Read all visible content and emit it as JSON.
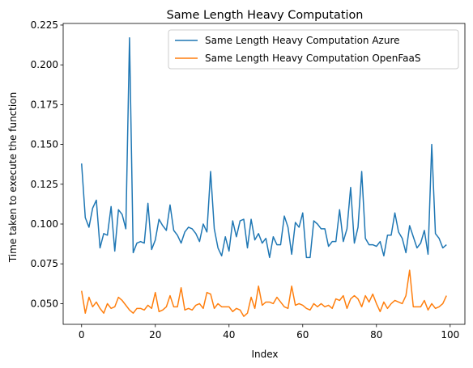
{
  "chart_data": {
    "type": "line",
    "title": "Same Length Heavy Computation",
    "xlabel": "Index",
    "ylabel": "Time taken to execute the function",
    "xlim": [
      -5,
      104
    ],
    "ylim": [
      0.037,
      0.226
    ],
    "xticks": [
      0,
      20,
      40,
      60,
      80,
      100
    ],
    "yticks": [
      0.05,
      0.075,
      0.1,
      0.125,
      0.15,
      0.175,
      0.2,
      0.225
    ],
    "ytick_labels": [
      "0.050",
      "0.075",
      "0.100",
      "0.125",
      "0.150",
      "0.175",
      "0.200",
      "0.225"
    ],
    "legend_position": "top-right",
    "grid": false,
    "series": [
      {
        "name": "Same Length Heavy Computation Azure",
        "color": "#1f77b4",
        "values": [
          0.138,
          0.104,
          0.098,
          0.11,
          0.115,
          0.085,
          0.094,
          0.093,
          0.111,
          0.083,
          0.109,
          0.106,
          0.097,
          0.217,
          0.082,
          0.088,
          0.089,
          0.088,
          0.113,
          0.084,
          0.09,
          0.103,
          0.099,
          0.096,
          0.112,
          0.096,
          0.093,
          0.088,
          0.095,
          0.098,
          0.097,
          0.094,
          0.089,
          0.1,
          0.095,
          0.133,
          0.097,
          0.085,
          0.08,
          0.092,
          0.083,
          0.102,
          0.092,
          0.102,
          0.103,
          0.085,
          0.103,
          0.09,
          0.094,
          0.088,
          0.091,
          0.079,
          0.092,
          0.087,
          0.087,
          0.105,
          0.098,
          0.081,
          0.101,
          0.098,
          0.107,
          0.079,
          0.079,
          0.102,
          0.1,
          0.097,
          0.097,
          0.086,
          0.089,
          0.089,
          0.109,
          0.089,
          0.097,
          0.123,
          0.088,
          0.098,
          0.133,
          0.091,
          0.087,
          0.087,
          0.086,
          0.089,
          0.08,
          0.093,
          0.093,
          0.107,
          0.095,
          0.091,
          0.082,
          0.099,
          0.092,
          0.085,
          0.088,
          0.096,
          0.081,
          0.15,
          0.094,
          0.091,
          0.085,
          0.087
        ]
      },
      {
        "name": "Same Length Heavy Computation OpenFaaS",
        "color": "#ff7f0e",
        "values": [
          0.058,
          0.044,
          0.054,
          0.048,
          0.051,
          0.047,
          0.044,
          0.05,
          0.047,
          0.048,
          0.054,
          0.052,
          0.049,
          0.046,
          0.044,
          0.047,
          0.047,
          0.046,
          0.049,
          0.047,
          0.057,
          0.045,
          0.046,
          0.048,
          0.055,
          0.048,
          0.048,
          0.06,
          0.046,
          0.047,
          0.046,
          0.049,
          0.05,
          0.047,
          0.057,
          0.056,
          0.047,
          0.05,
          0.048,
          0.048,
          0.048,
          0.045,
          0.047,
          0.046,
          0.042,
          0.044,
          0.054,
          0.047,
          0.061,
          0.049,
          0.051,
          0.051,
          0.05,
          0.054,
          0.051,
          0.048,
          0.047,
          0.061,
          0.049,
          0.05,
          0.049,
          0.047,
          0.046,
          0.05,
          0.048,
          0.05,
          0.048,
          0.049,
          0.047,
          0.053,
          0.052,
          0.055,
          0.047,
          0.053,
          0.055,
          0.053,
          0.048,
          0.055,
          0.051,
          0.056,
          0.05,
          0.045,
          0.051,
          0.047,
          0.05,
          0.052,
          0.051,
          0.05,
          0.055,
          0.071,
          0.048,
          0.048,
          0.048,
          0.052,
          0.046,
          0.05,
          0.047,
          0.048,
          0.05,
          0.055
        ]
      }
    ]
  }
}
